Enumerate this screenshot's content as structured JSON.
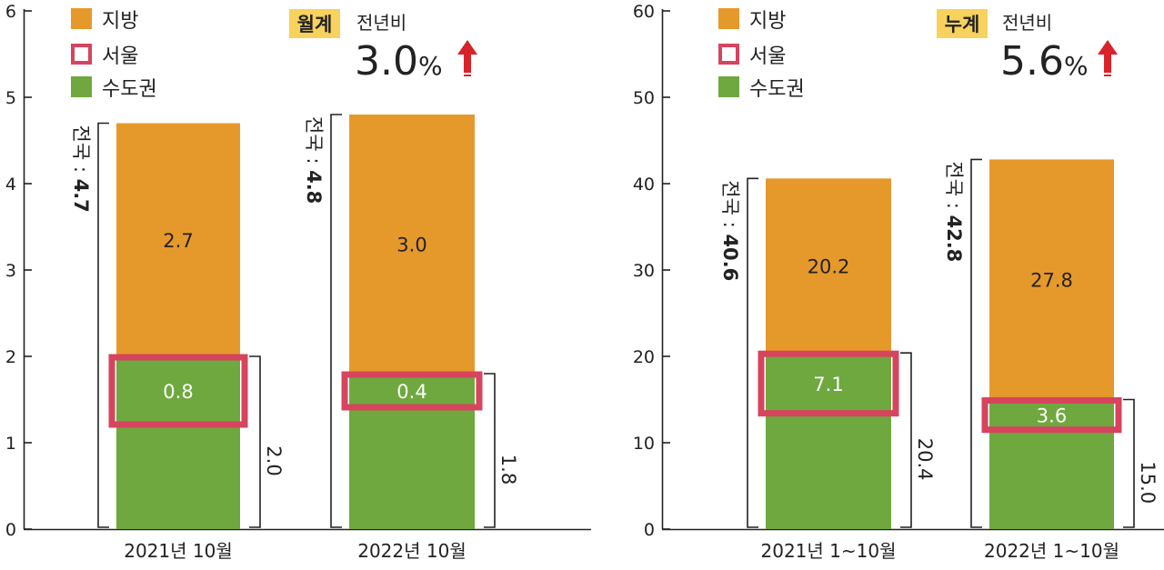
{
  "colors": {
    "provinces": "#E6992B",
    "capital_area": "#6FA83F",
    "seoul_outline": "#D6445E",
    "badge_bg": "#F7D25C",
    "arrow": "#D8232A",
    "axis": "#222222",
    "on_green_text": "#ffffff"
  },
  "legend": {
    "provinces": "지방",
    "seoul": "서울",
    "capital_area": "수도권"
  },
  "chart_data": [
    {
      "type": "bar",
      "stacked": true,
      "ylim": [
        0,
        6
      ],
      "yticks": [
        "0",
        "1",
        "2",
        "3",
        "4",
        "5",
        "6"
      ],
      "categories": [
        "2021년 10월",
        "2022년 10월"
      ],
      "badge": "월계",
      "yoy_label": "전년비",
      "yoy_value": "3.0",
      "yoy_unit": "%",
      "yoy_direction": "up-arrow-icon",
      "series": [
        {
          "name": "수도권",
          "values": [
            2.0,
            1.8
          ],
          "labels": [
            "",
            ""
          ]
        },
        {
          "name": "지방",
          "values": [
            2.7,
            3.0
          ],
          "labels": [
            "2.7",
            "3.0"
          ]
        }
      ],
      "seoul_values": [
        0.8,
        0.4
      ],
      "seoul_labels": [
        "0.8",
        "0.4"
      ],
      "capital_labels": [
        "2.0",
        "1.8"
      ],
      "national_totals": [
        4.7,
        4.8
      ],
      "national_prefix": "전국 : ",
      "national_labels": [
        "4.7",
        "4.8"
      ]
    },
    {
      "type": "bar",
      "stacked": true,
      "ylim": [
        0,
        60
      ],
      "yticks": [
        "0",
        "10",
        "20",
        "30",
        "40",
        "50",
        "60"
      ],
      "categories": [
        "2021년 1~10월",
        "2022년 1~10월"
      ],
      "badge": "누계",
      "yoy_label": "전년비",
      "yoy_value": "5.6",
      "yoy_unit": "%",
      "yoy_direction": "up-arrow-icon",
      "series": [
        {
          "name": "수도권",
          "values": [
            20.4,
            15.0
          ],
          "labels": [
            "",
            ""
          ]
        },
        {
          "name": "지방",
          "values": [
            20.2,
            27.8
          ],
          "labels": [
            "20.2",
            "27.8"
          ]
        }
      ],
      "seoul_values": [
        7.1,
        3.6
      ],
      "seoul_labels": [
        "7.1",
        "3.6"
      ],
      "capital_labels": [
        "20.4",
        "15.0"
      ],
      "national_totals": [
        40.6,
        42.8
      ],
      "national_prefix": "전국 : ",
      "national_labels": [
        "40.6",
        "42.8"
      ]
    }
  ]
}
